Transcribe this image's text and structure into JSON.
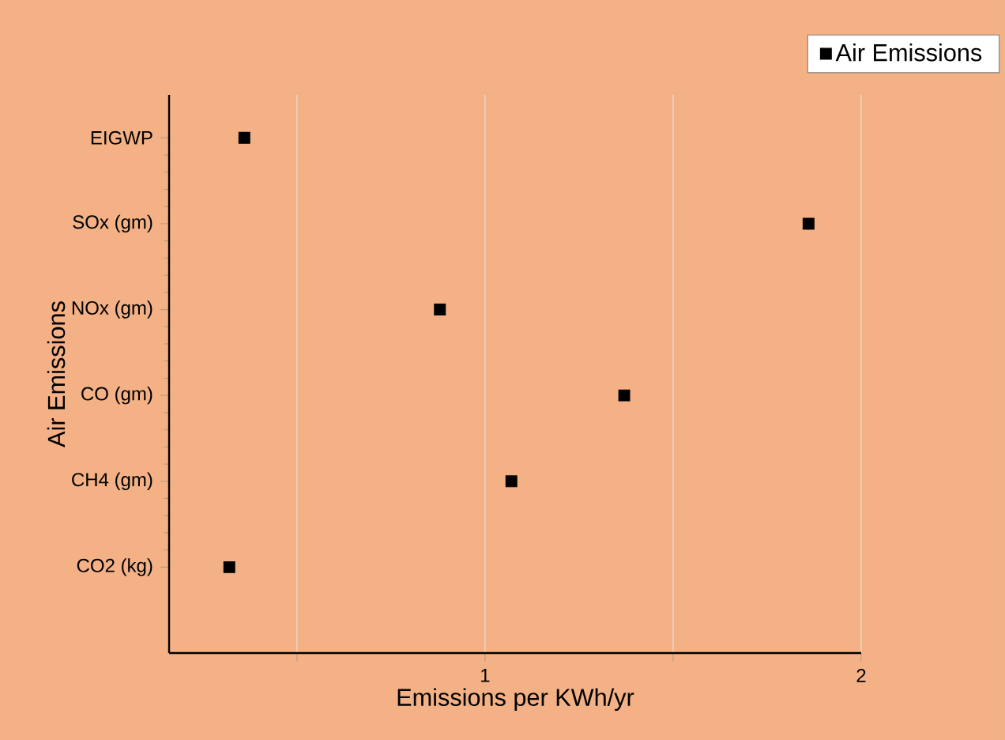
{
  "chart_data": {
    "type": "scatter",
    "orientation": "horizontal",
    "xlabel": "Emissions per KWh/yr",
    "ylabel": "Air Emissions",
    "categories": [
      "EIGWP",
      "SOx (gm)",
      "NOx (gm)",
      "CO (gm)",
      "CH4 (gm)",
      "CO2 (kg)"
    ],
    "series": [
      {
        "name": "Air Emissions",
        "color": "#000000",
        "values": [
          0.36,
          1.86,
          0.88,
          1.37,
          1.07,
          0.32
        ]
      }
    ],
    "xlim": [
      0.16,
      2.0
    ],
    "xticks": [
      {
        "value": 0.5,
        "label": null
      },
      1,
      {
        "value": 1.5,
        "label": null
      },
      2
    ],
    "grid": "x",
    "legend": "top right",
    "marker": "square"
  }
}
